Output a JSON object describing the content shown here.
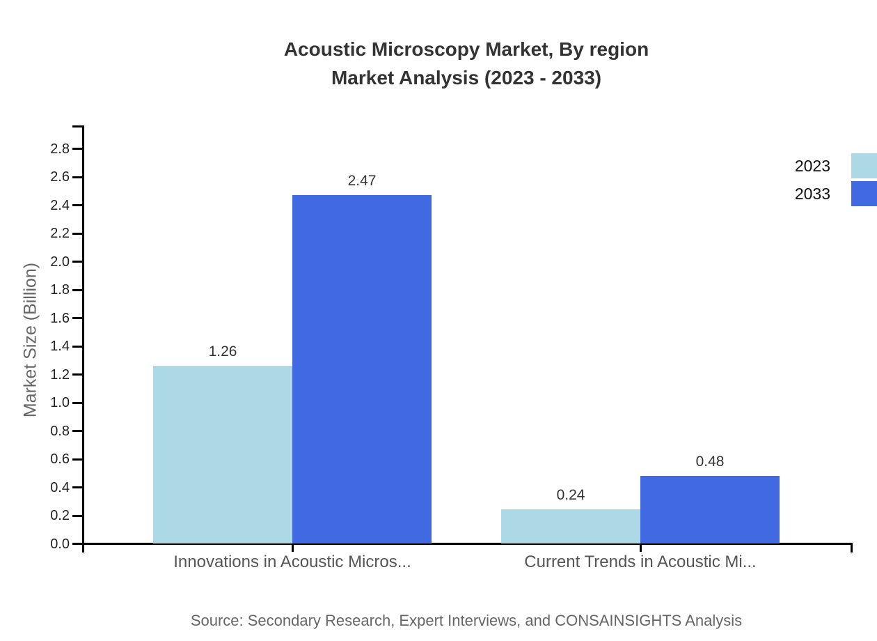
{
  "title": {
    "line1": "Acoustic Microscopy Market, By region",
    "line2": "Market Analysis (2023 - 2033)"
  },
  "footer": {
    "source": "Source: Secondary Research, Expert Interviews, and CONSAINSIGHTS Analysis"
  },
  "chart_data": {
    "type": "bar",
    "title": "Acoustic Microscopy Market, By region Market Analysis (2023 - 2033)",
    "categories": [
      "Innovations in Acoustic Micros...",
      "Current Trends in Acoustic Mi..."
    ],
    "series": [
      {
        "name": "2023",
        "color": "#add8e6",
        "values": [
          1.26,
          0.24
        ],
        "labels": [
          "1.26",
          "0.24"
        ]
      },
      {
        "name": "2033",
        "color": "#4169e1",
        "values": [
          2.47,
          0.48
        ],
        "labels": [
          "2.47",
          "0.48"
        ]
      }
    ],
    "xlabel": "",
    "ylabel": "Market Size (Billion)",
    "ylim": [
      0,
      2.9
    ],
    "ytick_labels": [
      "0.0",
      "0.2",
      "0.4",
      "0.6",
      "0.8",
      "1.0",
      "1.2",
      "1.4",
      "1.6",
      "1.8",
      "2.0",
      "2.2",
      "2.4",
      "2.6",
      "2.8"
    ],
    "grid": false,
    "legend_position": "top-right",
    "data_labels_shown": true
  },
  "colors": {
    "axis": "#000000",
    "title_text": "#333333",
    "tick_text": "#222222",
    "category_text": "#555555",
    "axis_label_text": "#666666",
    "source_text": "#666666",
    "legend_text": "#111111",
    "background": "#ffffff"
  }
}
